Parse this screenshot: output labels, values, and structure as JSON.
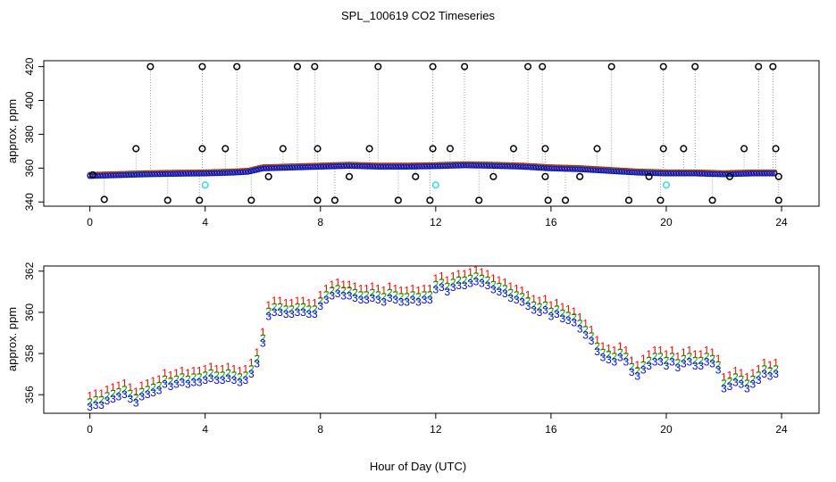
{
  "title": "SPL_100619  CO2 Timeseries",
  "xlabel": "Hour of Day (UTC)",
  "chart_data": [
    {
      "type": "scatter",
      "panel": "top",
      "ylabel": "approx. ppm",
      "xlim": [
        -1.6,
        25.3
      ],
      "ylim": [
        337.5,
        423.5
      ],
      "xticks": [
        0,
        4,
        8,
        12,
        16,
        20,
        24
      ],
      "yticks": [
        340,
        360,
        380,
        400,
        420
      ],
      "colors": {
        "black": "#000000",
        "red": "#ff0000",
        "green": "#00aa00",
        "blue": "#0000ff",
        "cyan": "#33dddd",
        "grey": "#999999"
      },
      "baseline": [
        [
          0,
          355.5
        ],
        [
          1,
          356
        ],
        [
          2,
          356.5
        ],
        [
          3,
          356.8
        ],
        [
          4,
          357
        ],
        [
          5,
          357.5
        ],
        [
          5.5,
          358
        ],
        [
          6,
          360
        ],
        [
          7,
          360.5
        ],
        [
          8,
          361
        ],
        [
          9,
          361.5
        ],
        [
          10,
          361
        ],
        [
          11,
          361
        ],
        [
          12,
          361.3
        ],
        [
          13,
          361.8
        ],
        [
          14,
          361.5
        ],
        [
          15,
          361
        ],
        [
          16,
          360
        ],
        [
          17,
          359.5
        ],
        [
          18,
          358.5
        ],
        [
          19,
          357.5
        ],
        [
          20,
          357
        ],
        [
          21,
          357
        ],
        [
          22,
          356.5
        ],
        [
          23,
          357
        ],
        [
          23.8,
          357
        ]
      ],
      "spikes_black": [
        [
          0.1,
          356
        ],
        [
          0.5,
          341.5
        ],
        [
          1.6,
          371.5
        ],
        [
          2.1,
          420
        ],
        [
          2.7,
          341
        ],
        [
          3.8,
          341
        ],
        [
          3.9,
          371.5
        ],
        [
          3.9,
          420
        ],
        [
          4.7,
          371.5
        ],
        [
          5.1,
          420
        ],
        [
          5.6,
          341
        ],
        [
          6.2,
          355
        ],
        [
          6.7,
          371.5
        ],
        [
          7.2,
          420
        ],
        [
          7.8,
          420
        ],
        [
          7.9,
          371.5
        ],
        [
          7.9,
          341
        ],
        [
          8.5,
          341
        ],
        [
          9.0,
          355
        ],
        [
          9.7,
          371.5
        ],
        [
          10.0,
          420
        ],
        [
          10.7,
          341
        ],
        [
          11.3,
          355
        ],
        [
          11.8,
          341
        ],
        [
          11.9,
          371.5
        ],
        [
          11.9,
          420
        ],
        [
          12.5,
          371.5
        ],
        [
          13.0,
          420
        ],
        [
          13.5,
          341
        ],
        [
          14.0,
          355
        ],
        [
          14.7,
          371.5
        ],
        [
          15.2,
          420
        ],
        [
          15.7,
          420
        ],
        [
          15.8,
          371.5
        ],
        [
          15.8,
          355
        ],
        [
          15.9,
          341
        ],
        [
          16.5,
          341
        ],
        [
          17.0,
          355
        ],
        [
          17.6,
          371.5
        ],
        [
          18.1,
          420
        ],
        [
          18.7,
          341
        ],
        [
          19.4,
          355
        ],
        [
          19.8,
          341
        ],
        [
          19.9,
          371.5
        ],
        [
          19.9,
          420
        ],
        [
          20.6,
          371.5
        ],
        [
          21.0,
          420
        ],
        [
          21.6,
          341
        ],
        [
          22.2,
          355
        ],
        [
          22.7,
          371.5
        ],
        [
          23.2,
          420
        ],
        [
          23.7,
          420
        ],
        [
          23.8,
          371.5
        ],
        [
          23.9,
          341
        ],
        [
          23.9,
          355
        ]
      ],
      "cyan_points": [
        [
          4.0,
          350
        ],
        [
          12.0,
          350
        ],
        [
          20.0,
          350
        ]
      ]
    },
    {
      "type": "scatter",
      "panel": "bottom",
      "ylabel": "approx. ppm",
      "xlim": [
        -1.6,
        25.3
      ],
      "ylim": [
        355.1,
        362.25
      ],
      "xticks": [
        0,
        4,
        8,
        12,
        16,
        20,
        24
      ],
      "yticks": [
        356,
        358,
        360,
        362
      ],
      "series": [
        {
          "name": "1",
          "color": "#ff0000",
          "offset": 0.55
        },
        {
          "name": "2",
          "color": "#00aa00",
          "offset": 0.25
        },
        {
          "name": "3",
          "color": "#0000ff",
          "offset": 0.0
        }
      ],
      "points": [
        [
          0.0,
          355.4
        ],
        [
          0.2,
          355.5
        ],
        [
          0.4,
          355.5
        ],
        [
          0.6,
          355.7
        ],
        [
          0.8,
          355.8
        ],
        [
          1.0,
          355.9
        ],
        [
          1.2,
          356.0
        ],
        [
          1.4,
          355.8
        ],
        [
          1.6,
          355.6
        ],
        [
          1.8,
          355.9
        ],
        [
          2.0,
          356.0
        ],
        [
          2.2,
          356.1
        ],
        [
          2.4,
          356.2
        ],
        [
          2.6,
          356.5
        ],
        [
          2.8,
          356.4
        ],
        [
          3.0,
          356.5
        ],
        [
          3.2,
          356.6
        ],
        [
          3.4,
          356.5
        ],
        [
          3.6,
          356.6
        ],
        [
          3.8,
          356.6
        ],
        [
          4.0,
          356.7
        ],
        [
          4.2,
          356.8
        ],
        [
          4.4,
          356.7
        ],
        [
          4.6,
          356.7
        ],
        [
          4.8,
          356.8
        ],
        [
          5.0,
          356.7
        ],
        [
          5.2,
          356.6
        ],
        [
          5.4,
          356.7
        ],
        [
          5.6,
          357.0
        ],
        [
          5.8,
          357.5
        ],
        [
          6.0,
          358.5
        ],
        [
          6.2,
          359.8
        ],
        [
          6.4,
          360.0
        ],
        [
          6.6,
          360.0
        ],
        [
          6.8,
          359.9
        ],
        [
          7.0,
          359.9
        ],
        [
          7.2,
          360.0
        ],
        [
          7.4,
          360.0
        ],
        [
          7.6,
          359.9
        ],
        [
          7.8,
          359.9
        ],
        [
          8.0,
          360.3
        ],
        [
          8.2,
          360.6
        ],
        [
          8.4,
          360.8
        ],
        [
          8.6,
          360.9
        ],
        [
          8.8,
          360.8
        ],
        [
          9.0,
          360.8
        ],
        [
          9.2,
          360.7
        ],
        [
          9.4,
          360.6
        ],
        [
          9.6,
          360.6
        ],
        [
          9.8,
          360.7
        ],
        [
          10.0,
          360.6
        ],
        [
          10.2,
          360.5
        ],
        [
          10.4,
          360.7
        ],
        [
          10.6,
          360.6
        ],
        [
          10.8,
          360.5
        ],
        [
          11.0,
          360.5
        ],
        [
          11.2,
          360.6
        ],
        [
          11.4,
          360.5
        ],
        [
          11.6,
          360.6
        ],
        [
          11.8,
          360.6
        ],
        [
          12.0,
          361.1
        ],
        [
          12.2,
          361.2
        ],
        [
          12.4,
          361.0
        ],
        [
          12.6,
          361.2
        ],
        [
          12.8,
          361.3
        ],
        [
          13.0,
          361.3
        ],
        [
          13.2,
          361.4
        ],
        [
          13.4,
          361.5
        ],
        [
          13.6,
          361.4
        ],
        [
          13.8,
          361.3
        ],
        [
          14.0,
          361.1
        ],
        [
          14.2,
          361.0
        ],
        [
          14.4,
          360.9
        ],
        [
          14.6,
          360.7
        ],
        [
          14.8,
          360.6
        ],
        [
          15.0,
          360.5
        ],
        [
          15.2,
          360.3
        ],
        [
          15.4,
          360.1
        ],
        [
          15.6,
          360.0
        ],
        [
          15.8,
          360.1
        ],
        [
          16.0,
          359.8
        ],
        [
          16.2,
          359.9
        ],
        [
          16.4,
          359.7
        ],
        [
          16.6,
          359.6
        ],
        [
          16.8,
          359.5
        ],
        [
          17.0,
          359.2
        ],
        [
          17.2,
          358.9
        ],
        [
          17.4,
          358.6
        ],
        [
          17.6,
          358.1
        ],
        [
          17.8,
          357.8
        ],
        [
          18.0,
          357.7
        ],
        [
          18.2,
          357.6
        ],
        [
          18.4,
          357.8
        ],
        [
          18.6,
          357.6
        ],
        [
          18.8,
          357.1
        ],
        [
          19.0,
          356.9
        ],
        [
          19.2,
          357.2
        ],
        [
          19.4,
          357.4
        ],
        [
          19.6,
          357.6
        ],
        [
          19.8,
          357.6
        ],
        [
          20.0,
          357.4
        ],
        [
          20.2,
          357.6
        ],
        [
          20.4,
          357.3
        ],
        [
          20.6,
          357.5
        ],
        [
          20.8,
          357.6
        ],
        [
          21.0,
          357.4
        ],
        [
          21.2,
          357.4
        ],
        [
          21.4,
          357.6
        ],
        [
          21.6,
          357.5
        ],
        [
          21.8,
          357.2
        ],
        [
          22.0,
          356.3
        ],
        [
          22.2,
          356.4
        ],
        [
          22.4,
          356.6
        ],
        [
          22.6,
          356.5
        ],
        [
          22.8,
          356.3
        ],
        [
          23.0,
          356.5
        ],
        [
          23.2,
          356.7
        ],
        [
          23.4,
          357.0
        ],
        [
          23.6,
          356.9
        ],
        [
          23.8,
          357.0
        ]
      ]
    }
  ]
}
